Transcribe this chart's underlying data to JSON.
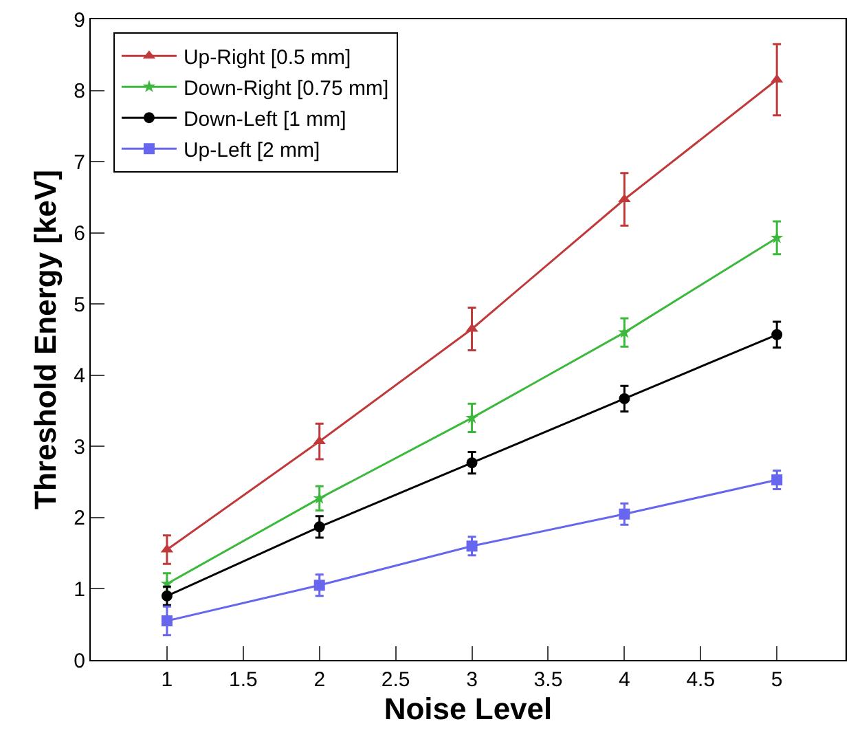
{
  "chart_data": {
    "type": "line",
    "xlabel": "Noise Level",
    "ylabel": "Threshold Energy [keV]",
    "x": [
      1,
      2,
      3,
      4,
      5
    ],
    "series": [
      {
        "name": "Up-Right [0.5 mm]",
        "color": "#c0393b",
        "marker": "triangle",
        "values": [
          1.55,
          3.07,
          4.65,
          6.47,
          8.15
        ],
        "errors": [
          0.2,
          0.25,
          0.3,
          0.37,
          0.5
        ]
      },
      {
        "name": "Down-Right [0.75 mm]",
        "color": "#3cb93c",
        "marker": "star",
        "values": [
          1.07,
          2.27,
          3.4,
          4.6,
          5.93
        ],
        "errors": [
          0.15,
          0.17,
          0.2,
          0.2,
          0.23
        ]
      },
      {
        "name": "Down-Left [1 mm]",
        "color": "#000000",
        "marker": "circle",
        "values": [
          0.9,
          1.87,
          2.77,
          3.67,
          4.57
        ],
        "errors": [
          0.13,
          0.15,
          0.15,
          0.18,
          0.18
        ]
      },
      {
        "name": "Up-Left [2 mm]",
        "color": "#6666ee",
        "marker": "square",
        "values": [
          0.55,
          1.05,
          1.6,
          2.05,
          2.53
        ],
        "errors": [
          0.2,
          0.15,
          0.13,
          0.15,
          0.13
        ]
      }
    ],
    "xlim": [
      0.5,
      5.45
    ],
    "xticks": [
      1,
      1.5,
      2,
      2.5,
      3,
      3.5,
      4,
      4.5,
      5
    ],
    "ylim": [
      0,
      9
    ],
    "yticks": [
      0,
      1,
      2,
      3,
      4,
      5,
      6,
      7,
      8,
      9
    ],
    "grid": false,
    "legend": "top left",
    "line_style": "solid"
  }
}
